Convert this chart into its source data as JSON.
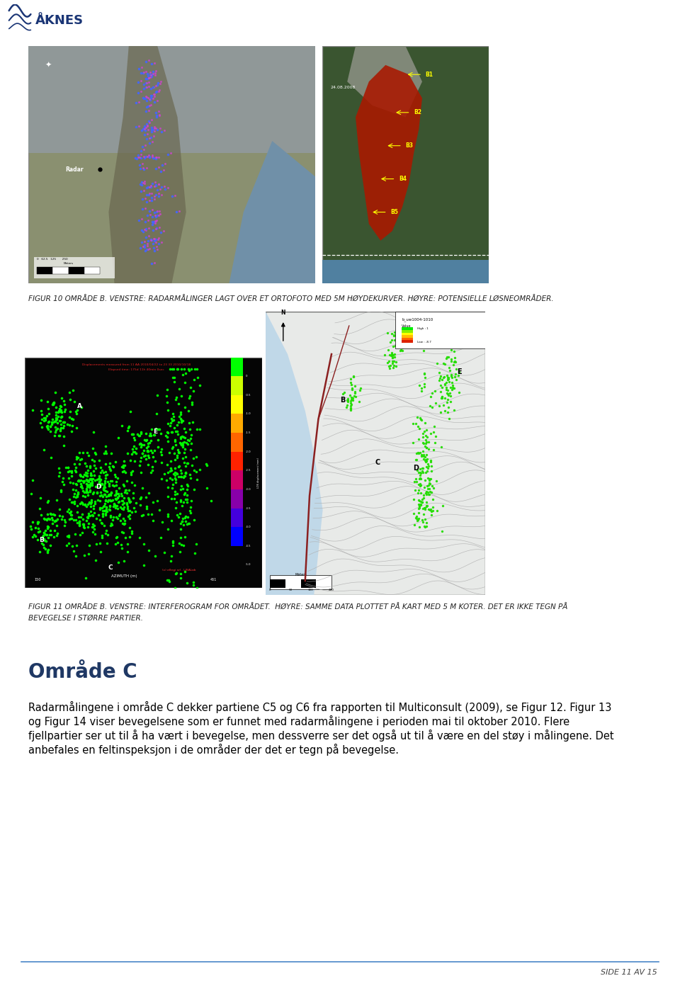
{
  "page_bg": "#ffffff",
  "logo_text": "ÅKNES",
  "footer_text": "SIDE 11 AV 15",
  "footer_line_color": "#4a86c8",
  "fig10_caption": "FIGUR 10 OMRÅDE B. VENSTRE: RADARMÅLINGER LAGT OVER ET ORTOFOTO MED 5M HØYDEKURVER. HØYRE: POTENSIELLE LØSNEOMRÅDER.",
  "fig11_caption_line1": "FIGUR 11 OMRÅDE B. VENSTRE: INTERFEROGRAM FOR OMRÅDET.  HØYRE: SAMME DATA PLOTTET PÅ KART MED 5 M KOTER. DET ER IKKE TEGN PÅ",
  "fig11_caption_line2": "BEVEGELSE I STØRRE PARTIER.",
  "section_title": "Område C",
  "body_text_line1": "Radarmålingene i område C dekker partiene C5 og C6 fra rapporten til Multiconsult (2009), se Figur 12. Figur 13",
  "body_text_line2": "og Figur 14 viser bevegelsene som er funnet med radarmålingene i perioden mai til oktober 2010. Flere",
  "body_text_line3": "fjellpartier ser ut til å ha vært i bevegelse, men dessverre ser det også ut til å være en del støy i målingene. Det",
  "body_text_line4": "anbefales en feltinspeksjon i de områder der det er tegn på bevegelse.",
  "img_border_color": "#888888",
  "caption_fontsize": 7.5,
  "caption_color": "#222222",
  "section_title_color": "#1f3864",
  "section_title_fontsize": 20,
  "body_fontsize": 10.5,
  "body_color": "#000000"
}
